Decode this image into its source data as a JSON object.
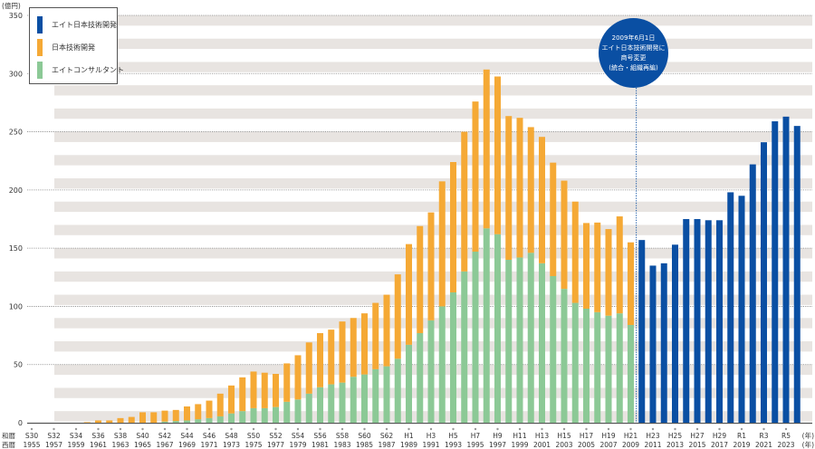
{
  "chart_data": {
    "type": "bar",
    "stacked": true,
    "title": "",
    "ylabel": "(億円)",
    "xlabel": "(年)",
    "ylim": [
      0,
      350
    ],
    "yticks": [
      0,
      50,
      100,
      150,
      200,
      250,
      300,
      350
    ],
    "grid": true,
    "legend_position": "top-left",
    "era_row_label": "和暦",
    "year_row_label": "西暦",
    "year_suffix": "(年)",
    "years": [
      1955,
      1956,
      1957,
      1958,
      1959,
      1960,
      1961,
      1962,
      1963,
      1964,
      1965,
      1966,
      1967,
      1968,
      1969,
      1970,
      1971,
      1972,
      1973,
      1974,
      1975,
      1976,
      1977,
      1978,
      1979,
      1980,
      1981,
      1982,
      1983,
      1984,
      1985,
      1986,
      1987,
      1988,
      1989,
      1990,
      1991,
      1992,
      1993,
      1994,
      1995,
      1996,
      1997,
      1998,
      1999,
      2000,
      2001,
      2002,
      2003,
      2004,
      2005,
      2006,
      2007,
      2008,
      2009,
      2010,
      2011,
      2012,
      2013,
      2014,
      2015,
      2016,
      2017,
      2018,
      2019,
      2020,
      2021,
      2022,
      2023,
      2024
    ],
    "tick_labels": [
      {
        "year": 1955,
        "era": "S30",
        "western": "1955"
      },
      {
        "year": 1957,
        "era": "S32",
        "western": "1957"
      },
      {
        "year": 1959,
        "era": "S34",
        "western": "1959"
      },
      {
        "year": 1961,
        "era": "S36",
        "western": "1961"
      },
      {
        "year": 1963,
        "era": "S38",
        "western": "1963"
      },
      {
        "year": 1965,
        "era": "S40",
        "western": "1965"
      },
      {
        "year": 1967,
        "era": "S42",
        "western": "1967"
      },
      {
        "year": 1969,
        "era": "S44",
        "western": "1969"
      },
      {
        "year": 1971,
        "era": "S46",
        "western": "1971"
      },
      {
        "year": 1973,
        "era": "S48",
        "western": "1973"
      },
      {
        "year": 1975,
        "era": "S50",
        "western": "1975"
      },
      {
        "year": 1977,
        "era": "S52",
        "western": "1977"
      },
      {
        "year": 1979,
        "era": "S54",
        "western": "1979"
      },
      {
        "year": 1981,
        "era": "S56",
        "western": "1981"
      },
      {
        "year": 1983,
        "era": "S58",
        "western": "1983"
      },
      {
        "year": 1985,
        "era": "S60",
        "western": "1985"
      },
      {
        "year": 1987,
        "era": "S62",
        "western": "1987"
      },
      {
        "year": 1989,
        "era": "H1",
        "western": "1989"
      },
      {
        "year": 1991,
        "era": "H3",
        "western": "1991"
      },
      {
        "year": 1993,
        "era": "H5",
        "western": "1993"
      },
      {
        "year": 1995,
        "era": "H7",
        "western": "1995"
      },
      {
        "year": 1997,
        "era": "H9",
        "western": "1997"
      },
      {
        "year": 1999,
        "era": "H11",
        "western": "1999"
      },
      {
        "year": 2001,
        "era": "H13",
        "western": "2001"
      },
      {
        "year": 2003,
        "era": "H15",
        "western": "2003"
      },
      {
        "year": 2005,
        "era": "H17",
        "western": "2005"
      },
      {
        "year": 2007,
        "era": "H19",
        "western": "2007"
      },
      {
        "year": 2009,
        "era": "H21",
        "western": "2009"
      },
      {
        "year": 2011,
        "era": "H23",
        "western": "2011"
      },
      {
        "year": 2013,
        "era": "H25",
        "western": "2013"
      },
      {
        "year": 2015,
        "era": "H27",
        "western": "2015"
      },
      {
        "year": 2017,
        "era": "H29",
        "western": "2017"
      },
      {
        "year": 2019,
        "era": "R1",
        "western": "2019"
      },
      {
        "year": 2021,
        "era": "R3",
        "western": "2021"
      },
      {
        "year": 2023,
        "era": "R5",
        "western": "2023"
      }
    ],
    "series": [
      {
        "name": "エイトコンサルタント",
        "color": "#8cc996",
        "values": [
          0,
          0,
          0,
          0,
          0,
          0,
          0,
          0,
          0,
          0,
          0,
          0,
          1,
          1.5,
          2,
          3,
          4,
          5.5,
          8,
          10,
          12.5,
          12.5,
          13.5,
          18,
          20,
          25,
          30.5,
          33,
          34.5,
          39.5,
          41.5,
          46,
          48.5,
          55,
          67,
          77,
          88,
          100,
          112,
          130,
          147,
          167,
          162,
          140,
          142,
          146,
          137,
          126,
          115,
          103,
          98,
          95,
          92,
          94,
          84,
          0,
          0,
          0,
          0,
          0,
          0,
          0,
          0,
          0,
          0,
          0,
          0,
          0,
          0,
          0
        ]
      },
      {
        "name": "日本技術開発",
        "color": "#f5a935",
        "values": [
          0,
          0,
          0,
          0,
          0,
          0.5,
          2,
          2,
          4,
          5,
          9,
          9,
          9.4,
          9.5,
          12,
          13,
          15,
          19.5,
          24,
          29,
          31.5,
          30.5,
          28.5,
          33,
          38,
          44,
          46.5,
          47,
          52.5,
          50.5,
          52.5,
          57,
          61.5,
          72.5,
          86.5,
          92,
          92.7,
          107.4,
          112,
          120,
          129,
          136.5,
          135.5,
          123.5,
          120,
          108,
          108.6,
          97.5,
          93,
          87,
          73.6,
          77,
          74.4,
          83.3,
          71,
          0,
          0,
          0,
          0,
          0,
          0,
          0,
          0,
          0,
          0,
          0,
          0,
          0,
          0,
          0
        ]
      },
      {
        "name": "エイト日本技術開発",
        "color": "#0a4fa3",
        "values": [
          0,
          0,
          0,
          0,
          0,
          0,
          0,
          0,
          0,
          0,
          0,
          0,
          0,
          0,
          0,
          0,
          0,
          0,
          0,
          0,
          0,
          0,
          0,
          0,
          0,
          0,
          0,
          0,
          0,
          0,
          0,
          0,
          0,
          0,
          0,
          0,
          0,
          0,
          0,
          0,
          0,
          0,
          0,
          0,
          0,
          0,
          0,
          0,
          0,
          0,
          0,
          0,
          0,
          0,
          0,
          157,
          135,
          137,
          153,
          175,
          175,
          174,
          174,
          198,
          195,
          222,
          241,
          259,
          263,
          255
        ]
      }
    ],
    "legend": [
      "エイト日本技術開発",
      "日本技術開発",
      "エイトコンサルタント"
    ],
    "annotation": {
      "lines": [
        "2009年6月1日",
        "エイト日本技術開発に",
        "商号変更",
        "(統合・組織再編)"
      ],
      "year": 2009.5
    }
  },
  "colors": {
    "stripe": "#e8e4e1",
    "axis": "#555555",
    "annotation_line": "#0a4fa3"
  }
}
